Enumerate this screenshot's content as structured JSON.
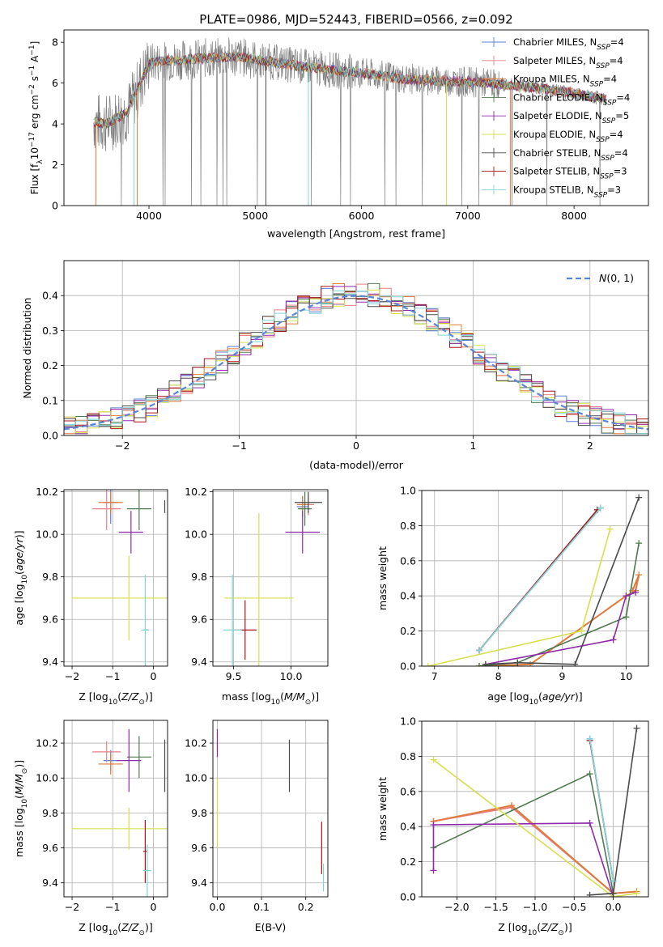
{
  "figure_title": "PLATE=0986, MJD=52443, FIBERID=0566, z=0.092",
  "colors": {
    "Chabrier MILES": "#5b7fd6",
    "Salpeter MILES": "#e77f86",
    "Kroupa MILES": "#e07b3c",
    "Chabrier ELODIE": "#4f7a4f",
    "Salpeter ELODIE": "#8e2aa9",
    "Kroupa ELODIE": "#d5e04c",
    "Chabrier STELIB": "#4a4a4a",
    "Salpeter STELIB": "#a8161a",
    "Kroupa STELIB": "#7fd6d6",
    "normal": "#5b86d6",
    "grid": "#b0b0b0"
  },
  "chart_data": [
    {
      "type": "line",
      "panel": "spectrum",
      "xlabel": "wavelength [Angstrom, rest frame]",
      "ylabel": "Flux [f",
      "xlim": [
        3200,
        8700
      ],
      "ylim": [
        0,
        8.6
      ],
      "xticks": [
        "4000",
        "5000",
        "6000",
        "7000",
        "8000"
      ],
      "yticks": [
        "0",
        "2",
        "4",
        "6",
        "8"
      ],
      "grid": false,
      "legend_placement": "right",
      "legend": [
        "Chabrier MILES, N",
        "Salpeter MILES, N",
        "Kroupa MILES, N",
        "Chabrier ELODIE, N",
        "Salpeter ELODIE, N",
        "Kroupa ELODIE, N",
        "Chabrier STELIB, N",
        "Salpeter STELIB, N",
        "Kroupa STELIB, N"
      ],
      "legend_nssp": [
        "4",
        "4",
        "4",
        "4",
        "5",
        "4",
        "4",
        "3",
        "3"
      ],
      "continuum_x": [
        3480,
        3600,
        3800,
        4000,
        4200,
        4500,
        4800,
        5200,
        5600,
        6000,
        6400,
        6800,
        7200,
        7600,
        8000,
        8300
      ],
      "continuum_y": [
        4.1,
        4.0,
        4.6,
        7.0,
        7.1,
        7.2,
        7.3,
        7.0,
        6.7,
        6.5,
        6.2,
        6.1,
        6.0,
        5.8,
        5.5,
        5.2
      ]
    },
    {
      "type": "line",
      "panel": "residual_hist",
      "xlabel": "(data-model)/error",
      "ylabel": "Normed distribution",
      "xlim": [
        -2.5,
        2.5
      ],
      "ylim": [
        0,
        0.5
      ],
      "xticks": [
        "−2",
        "−1",
        "0",
        "1",
        "2"
      ],
      "yticks": [
        "0.0",
        "0.1",
        "0.2",
        "0.3",
        "0.4"
      ],
      "grid": true,
      "legend": [
        "N(0,1)"
      ],
      "legend_placement": "top-right"
    },
    {
      "type": "scatter",
      "panel": "age_vs_Z",
      "xlabel": "Z [log10(Z/Zsun)]",
      "ylabel": "age [log10(age/yr)]",
      "xlim": [
        -2.2,
        0.35
      ],
      "ylim": [
        9.38,
        10.21
      ],
      "xticks": [
        "−2",
        "−1",
        "0"
      ],
      "yticks": [
        "9.4",
        "9.6",
        "9.8",
        "10.0",
        "10.2"
      ],
      "grid": true,
      "points": [
        {
          "model": "Chabrier MILES",
          "x": -1.05,
          "y": 10.15,
          "xe": 0.18,
          "ye": 0.1
        },
        {
          "model": "Salpeter MILES",
          "x": -1.15,
          "y": 10.12,
          "xe": 0.35,
          "ye": 0.1
        },
        {
          "model": "Kroupa MILES",
          "x": -1.05,
          "y": 10.15,
          "xe": 0.3,
          "ye": 0.05
        },
        {
          "model": "Chabrier ELODIE",
          "x": -0.35,
          "y": 10.12,
          "xe": 0.3,
          "ye": 0.1
        },
        {
          "model": "Salpeter ELODIE",
          "x": -0.55,
          "y": 10.01,
          "xe": 0.3,
          "ye": 0.1
        },
        {
          "model": "Kroupa ELODIE",
          "x": -0.6,
          "y": 9.7,
          "xe": 1.4,
          "ye": 0.2
        },
        {
          "model": "Chabrier STELIB",
          "x": 0.28,
          "y": 10.13,
          "xe": 0.0,
          "ye": 0.03
        },
        {
          "model": "Salpeter STELIB",
          "x": -0.18,
          "y": 9.55,
          "xe": 0.05,
          "ye": 0.0
        },
        {
          "model": "Kroupa STELIB",
          "x": -0.2,
          "y": 9.55,
          "xe": 0.1,
          "ye": 0.26
        }
      ]
    },
    {
      "type": "scatter",
      "panel": "age_vs_mass",
      "xlabel": "mass [log10(M/Msun)]",
      "ylabel": "",
      "xlim": [
        9.32,
        10.32
      ],
      "ylim": [
        9.38,
        10.21
      ],
      "xticks": [
        "9.5",
        "10.0"
      ],
      "yticks": [
        "9.4",
        "9.6",
        "9.8",
        "10.0",
        "10.2"
      ],
      "grid": true,
      "points": [
        {
          "model": "Chabrier MILES",
          "x": 10.1,
          "y": 10.13,
          "xe": 0.05,
          "ye": 0.05
        },
        {
          "model": "Salpeter MILES",
          "x": 10.15,
          "y": 10.14,
          "xe": 0.05,
          "ye": 0.05
        },
        {
          "model": "Kroupa MILES",
          "x": 10.1,
          "y": 10.14,
          "xe": 0.05,
          "ye": 0.04
        },
        {
          "model": "Chabrier ELODIE",
          "x": 10.12,
          "y": 10.12,
          "xe": 0.06,
          "ye": 0.08
        },
        {
          "model": "Salpeter ELODIE",
          "x": 10.1,
          "y": 10.01,
          "xe": 0.15,
          "ye": 0.1
        },
        {
          "model": "Kroupa ELODIE",
          "x": 9.72,
          "y": 9.7,
          "xe": 0.3,
          "ye": 0.4
        },
        {
          "model": "Chabrier STELIB",
          "x": 10.15,
          "y": 10.15,
          "xe": 0.12,
          "ye": 0.05
        },
        {
          "model": "Salpeter STELIB",
          "x": 9.6,
          "y": 9.55,
          "xe": 0.1,
          "ye": 0.14
        },
        {
          "model": "Kroupa STELIB",
          "x": 9.49,
          "y": 9.55,
          "xe": 0.08,
          "ye": 0.26
        }
      ]
    },
    {
      "type": "line",
      "panel": "massweight_vs_age",
      "xlabel": "age [log10(age/yr)]",
      "ylabel": "mass weight",
      "xlim": [
        6.8,
        10.35
      ],
      "ylim": [
        0,
        1
      ],
      "xticks": [
        "7",
        "8",
        "9",
        "10"
      ],
      "yticks": [
        "0.0",
        "0.2",
        "0.4",
        "0.6",
        "0.8",
        "1.0"
      ],
      "grid": true,
      "series": [
        {
          "model": "Chabrier MILES",
          "x": [
            7.7,
            9.6
          ],
          "y": [
            0.09,
            0.9
          ]
        },
        {
          "model": "Salpeter MILES",
          "x": [
            7.7,
            9.55
          ],
          "y": [
            0.09,
            0.89
          ]
        },
        {
          "model": "Kroupa MILES",
          "x": [
            7.7,
            8.5,
            10.0,
            10.15,
            10.2,
            10.1
          ],
          "y": [
            0.0,
            0.01,
            0.4,
            0.43,
            0.52,
            0.43
          ]
        },
        {
          "model": "Chabrier ELODIE",
          "x": [
            7.7,
            8.3,
            10.0,
            10.2
          ],
          "y": [
            0.0,
            0.02,
            0.28,
            0.7
          ]
        },
        {
          "model": "Salpeter ELODIE",
          "x": [
            7.8,
            9.8,
            10.0,
            10.15
          ],
          "y": [
            0.01,
            0.15,
            0.4,
            0.42
          ]
        },
        {
          "model": "Kroupa ELODIE",
          "x": [
            6.9,
            9.3,
            9.75
          ],
          "y": [
            0.0,
            0.2,
            0.78
          ]
        },
        {
          "model": "Chabrier STELIB",
          "x": [
            7.8,
            8.3,
            9.2,
            10.2
          ],
          "y": [
            0.01,
            0.02,
            0.01,
            0.96
          ]
        },
        {
          "model": "Salpeter STELIB",
          "x": [
            7.7,
            9.55
          ],
          "y": [
            0.09,
            0.89
          ]
        },
        {
          "model": "Kroupa STELIB",
          "x": [
            7.7,
            9.6
          ],
          "y": [
            0.09,
            0.9
          ]
        }
      ]
    },
    {
      "type": "scatter",
      "panel": "mass_vs_Z",
      "xlabel": "Z [log10(Z/Zsun)]",
      "ylabel": "mass [log10(M/Msun)]",
      "xlim": [
        -2.2,
        0.35
      ],
      "ylim": [
        9.32,
        10.33
      ],
      "xticks": [
        "−2",
        "−1",
        "0"
      ],
      "yticks": [
        "9.4",
        "9.6",
        "9.8",
        "10.0",
        "10.2"
      ],
      "grid": true,
      "points": [
        {
          "model": "Chabrier MILES",
          "x": -1.05,
          "y": 10.1,
          "xe": 0.18,
          "ye": 0.06
        },
        {
          "model": "Salpeter MILES",
          "x": -1.15,
          "y": 10.15,
          "xe": 0.35,
          "ye": 0.06
        },
        {
          "model": "Kroupa MILES",
          "x": -1.05,
          "y": 10.08,
          "xe": 0.3,
          "ye": 0.06
        },
        {
          "model": "Chabrier ELODIE",
          "x": -0.35,
          "y": 10.12,
          "xe": 0.3,
          "ye": 0.12
        },
        {
          "model": "Salpeter ELODIE",
          "x": -0.6,
          "y": 10.1,
          "xe": 0.3,
          "ye": 0.18
        },
        {
          "model": "Kroupa ELODIE",
          "x": -0.6,
          "y": 9.71,
          "xe": 1.4,
          "ye": 0.12
        },
        {
          "model": "Chabrier STELIB",
          "x": 0.28,
          "y": 10.07,
          "xe": 0.0,
          "ye": 0.15
        },
        {
          "model": "Salpeter STELIB",
          "x": -0.2,
          "y": 9.58,
          "xe": 0.05,
          "ye": 0.18
        },
        {
          "model": "Kroupa STELIB",
          "x": -0.15,
          "y": 9.47,
          "xe": 0.1,
          "ye": 0.15
        }
      ]
    },
    {
      "type": "scatter",
      "panel": "mass_vs_EBV",
      "xlabel": "E(B-V)",
      "ylabel": "",
      "xlim": [
        -0.01,
        0.25
      ],
      "ylim": [
        9.32,
        10.33
      ],
      "xticks": [
        "0.0",
        "0.1",
        "0.2"
      ],
      "yticks": [
        "9.4",
        "9.6",
        "9.8",
        "10.0",
        "10.2"
      ],
      "grid": true,
      "points": [
        {
          "model": "Salpeter ELODIE",
          "x": 0.0,
          "y": 10.2,
          "xe": 0.0,
          "ye": 0.08
        },
        {
          "model": "Kroupa ELODIE",
          "x": 0.0,
          "y": 9.8,
          "xe": 0.0,
          "ye": 0.2
        },
        {
          "model": "Chabrier STELIB",
          "x": 0.163,
          "y": 10.07,
          "xe": 0.0,
          "ye": 0.15
        },
        {
          "model": "Salpeter STELIB",
          "x": 0.236,
          "y": 9.6,
          "xe": 0.0,
          "ye": 0.15
        },
        {
          "model": "Kroupa STELIB",
          "x": 0.24,
          "y": 9.43,
          "xe": 0.0,
          "ye": 0.08
        }
      ]
    },
    {
      "type": "line",
      "panel": "massweight_vs_Z",
      "xlabel": "Z [log10(Z/Zsun)]",
      "ylabel": "mass weight",
      "xlim": [
        -2.45,
        0.45
      ],
      "ylim": [
        0,
        1
      ],
      "xticks": [
        "−2.0",
        "−1.5",
        "−1.0",
        "−0.5",
        "0.0"
      ],
      "yticks": [
        "0.0",
        "0.2",
        "0.4",
        "0.6",
        "0.8",
        "1.0"
      ],
      "grid": true,
      "series": [
        {
          "model": "Chabrier MILES",
          "x": [
            -0.3,
            0.0
          ],
          "y": [
            0.9,
            0.09
          ]
        },
        {
          "model": "Salpeter MILES",
          "x": [
            -2.3,
            -1.3,
            0.0
          ],
          "y": [
            0.43,
            0.51,
            0.02
          ]
        },
        {
          "model": "Kroupa MILES",
          "x": [
            -2.3,
            -1.3,
            0.0,
            0.3
          ],
          "y": [
            0.43,
            0.52,
            0.02,
            0.03
          ]
        },
        {
          "model": "Chabrier ELODIE",
          "x": [
            -2.3,
            -0.3,
            0.0
          ],
          "y": [
            0.28,
            0.7,
            0.02
          ]
        },
        {
          "model": "Salpeter ELODIE",
          "x": [
            -2.3,
            -2.3,
            -0.3,
            0.0
          ],
          "y": [
            0.15,
            0.41,
            0.42,
            0.0
          ]
        },
        {
          "model": "Kroupa ELODIE",
          "x": [
            -2.3,
            0.0,
            0.3
          ],
          "y": [
            0.78,
            0.0,
            0.02
          ]
        },
        {
          "model": "Chabrier STELIB",
          "x": [
            -0.3,
            0.0,
            0.3
          ],
          "y": [
            0.01,
            0.02,
            0.96
          ]
        },
        {
          "model": "Salpeter STELIB",
          "x": [
            -0.3,
            0.0
          ],
          "y": [
            0.89,
            0.09
          ]
        },
        {
          "model": "Kroupa STELIB",
          "x": [
            -0.3,
            0.0
          ],
          "y": [
            0.9,
            0.09
          ]
        }
      ]
    }
  ]
}
